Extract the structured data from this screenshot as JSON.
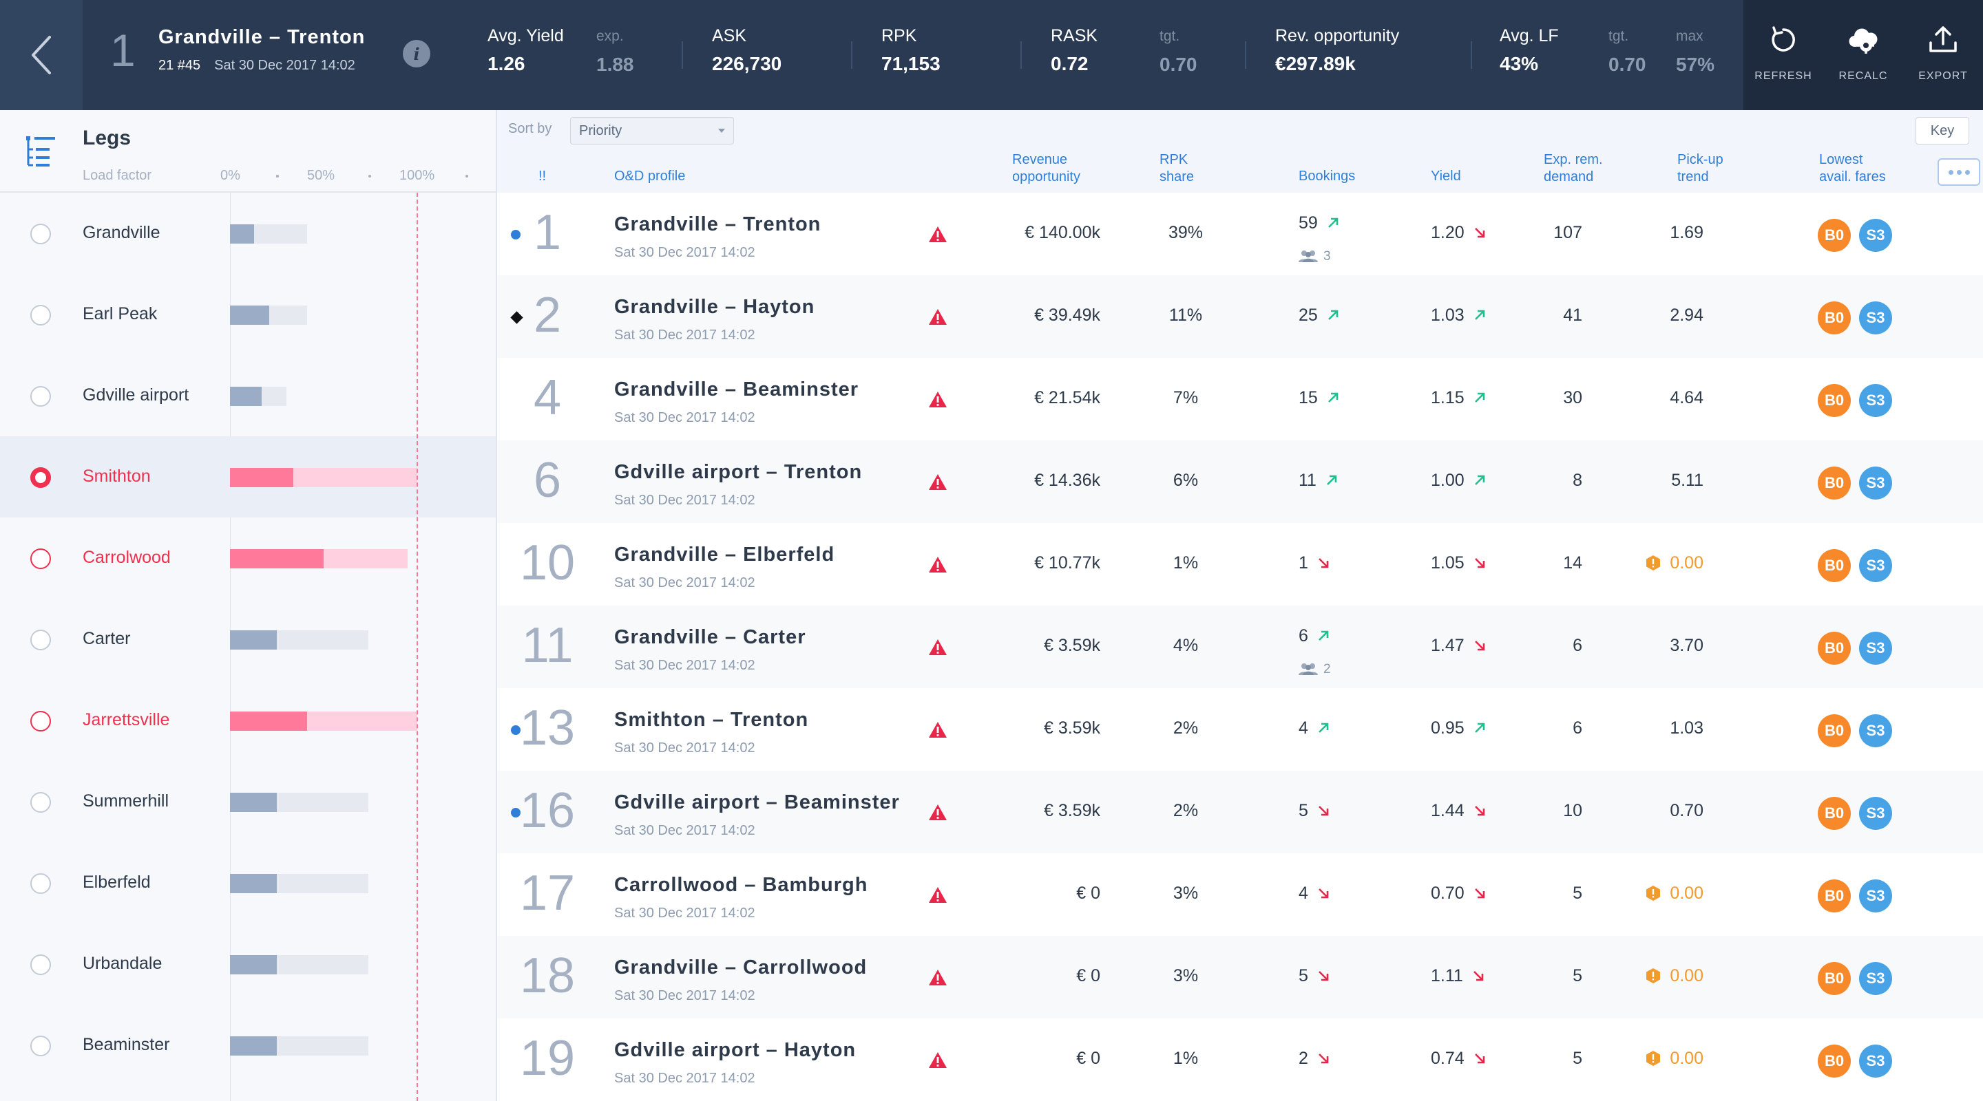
{
  "header": {
    "flight_index": "1",
    "route": "Grandville – Trenton",
    "flight_id": "21 #45",
    "datetime": "Sat 30 Dec 2017 14:02",
    "kpis": [
      {
        "label": "Avg. Yield",
        "value": "1.26"
      },
      {
        "label": "exp.",
        "value": "1.88"
      },
      {
        "label": "ASK",
        "value": "226,730"
      },
      {
        "label": "RPK",
        "value": "71,153"
      },
      {
        "label": "RASK",
        "value": "0.72"
      },
      {
        "label": "tgt.",
        "value": "0.70"
      },
      {
        "label": "Rev. opportunity",
        "value": "€297.89k"
      },
      {
        "label": "Avg. LF",
        "value": "43%"
      },
      {
        "label": "tgt.",
        "value": "0.70"
      },
      {
        "label": "max",
        "value": "57%"
      }
    ],
    "actions": [
      {
        "label": "REFRESH",
        "icon": "refresh-icon"
      },
      {
        "label": "RECALC",
        "icon": "cloud-gear-icon"
      },
      {
        "label": "EXPORT",
        "icon": "upload-icon"
      }
    ]
  },
  "sidebar": {
    "title": "Legs",
    "load_factor_label": "Load factor",
    "ticks": [
      "0%",
      "50%",
      "100%"
    ],
    "legs": [
      {
        "name": "Grandville",
        "load": 0.13,
        "capacity": 0.41,
        "state": "normal"
      },
      {
        "name": "Earl Peak",
        "load": 0.21,
        "capacity": 0.41,
        "state": "normal"
      },
      {
        "name": "Gdville airport",
        "load": 0.17,
        "capacity": 0.3,
        "state": "normal"
      },
      {
        "name": "Smithton",
        "load": 0.34,
        "capacity": 1.0,
        "state": "selected"
      },
      {
        "name": "Carrolwood",
        "load": 0.5,
        "capacity": 0.95,
        "state": "alert"
      },
      {
        "name": "Carter",
        "load": 0.25,
        "capacity": 0.74,
        "state": "normal"
      },
      {
        "name": "Jarrettsville",
        "load": 0.41,
        "capacity": 1.0,
        "state": "alert"
      },
      {
        "name": "Summerhill",
        "load": 0.25,
        "capacity": 0.74,
        "state": "normal"
      },
      {
        "name": "Elberfeld",
        "load": 0.25,
        "capacity": 0.74,
        "state": "normal"
      },
      {
        "name": "Urbandale",
        "load": 0.25,
        "capacity": 0.74,
        "state": "normal"
      },
      {
        "name": "Beaminster",
        "load": 0.25,
        "capacity": 0.74,
        "state": "normal"
      }
    ]
  },
  "table": {
    "sort_label": "Sort by",
    "sort_value": "Priority",
    "key_label": "Key",
    "columns": {
      "flag": "!!",
      "od": "O&D profile",
      "rev": "Revenue\nopportunity",
      "rpk": "RPK\nshare",
      "bookings": "Bookings",
      "yield": "Yield",
      "exp": "Exp. rem.\ndemand",
      "pickup": "Pick-up\ntrend",
      "fares": "Lowest\navail. fares"
    },
    "rows": [
      {
        "marker": "dot",
        "num": "1",
        "od": "Grandville – Trenton",
        "date": "Sat 30 Dec 2017 14:02",
        "rev": "€ 140.00k",
        "rpk": "39%",
        "bookings": "59",
        "bk_trend": "up",
        "pax": "3",
        "yield": "1.20",
        "y_trend": "down",
        "exp": "107",
        "pickup": "1.69",
        "pickup_warn": false,
        "fare1": "B0",
        "fare2": "S3"
      },
      {
        "marker": "diamond",
        "num": "2",
        "od": "Grandville – Hayton",
        "date": "Sat 30 Dec 2017 14:02",
        "rev": "€ 39.49k",
        "rpk": "11%",
        "bookings": "25",
        "bk_trend": "up",
        "pax": "",
        "yield": "1.03",
        "y_trend": "up",
        "exp": "41",
        "pickup": "2.94",
        "pickup_warn": false,
        "fare1": "B0",
        "fare2": "S3"
      },
      {
        "marker": "",
        "num": "4",
        "od": "Grandville – Beaminster",
        "date": "Sat 30 Dec 2017 14:02",
        "rev": "€ 21.54k",
        "rpk": "7%",
        "bookings": "15",
        "bk_trend": "up",
        "pax": "",
        "yield": "1.15",
        "y_trend": "up",
        "exp": "30",
        "pickup": "4.64",
        "pickup_warn": false,
        "fare1": "B0",
        "fare2": "S3"
      },
      {
        "marker": "",
        "num": "6",
        "od": "Gdville airport – Trenton",
        "date": "Sat 30 Dec 2017 14:02",
        "rev": "€ 14.36k",
        "rpk": "6%",
        "bookings": "11",
        "bk_trend": "up",
        "pax": "",
        "yield": "1.00",
        "y_trend": "up",
        "exp": "8",
        "pickup": "5.11",
        "pickup_warn": false,
        "fare1": "B0",
        "fare2": "S3"
      },
      {
        "marker": "",
        "num": "10",
        "od": "Grandville – Elberfeld",
        "date": "Sat 30 Dec 2017 14:02",
        "rev": "€ 10.77k",
        "rpk": "1%",
        "bookings": "1",
        "bk_trend": "down",
        "pax": "",
        "yield": "1.05",
        "y_trend": "down",
        "exp": "14",
        "pickup": "0.00",
        "pickup_warn": true,
        "fare1": "B0",
        "fare2": "S3"
      },
      {
        "marker": "",
        "num": "11",
        "od": "Grandville – Carter",
        "date": "Sat 30 Dec 2017 14:02",
        "rev": "€ 3.59k",
        "rpk": "4%",
        "bookings": "6",
        "bk_trend": "up",
        "pax": "2",
        "yield": "1.47",
        "y_trend": "down",
        "exp": "6",
        "pickup": "3.70",
        "pickup_warn": false,
        "fare1": "B0",
        "fare2": "S3"
      },
      {
        "marker": "dot",
        "num": "13",
        "od": "Smithton – Trenton",
        "date": "Sat 30 Dec 2017 14:02",
        "rev": "€ 3.59k",
        "rpk": "2%",
        "bookings": "4",
        "bk_trend": "up",
        "pax": "",
        "yield": "0.95",
        "y_trend": "up",
        "exp": "6",
        "pickup": "1.03",
        "pickup_warn": false,
        "fare1": "B0",
        "fare2": "S3"
      },
      {
        "marker": "dot",
        "num": "16",
        "od": "Gdville airport – Beaminster",
        "date": "Sat 30 Dec 2017 14:02",
        "rev": "€ 3.59k",
        "rpk": "2%",
        "bookings": "5",
        "bk_trend": "down",
        "pax": "",
        "yield": "1.44",
        "y_trend": "down",
        "exp": "10",
        "pickup": "0.70",
        "pickup_warn": false,
        "fare1": "B0",
        "fare2": "S3"
      },
      {
        "marker": "",
        "num": "17",
        "od": "Carrollwood – Bamburgh",
        "date": "Sat 30 Dec 2017 14:02",
        "rev": "€ 0",
        "rpk": "3%",
        "bookings": "4",
        "bk_trend": "down",
        "pax": "",
        "yield": "0.70",
        "y_trend": "down",
        "exp": "5",
        "pickup": "0.00",
        "pickup_warn": true,
        "fare1": "B0",
        "fare2": "S3"
      },
      {
        "marker": "",
        "num": "18",
        "od": "Grandville – Carrollwood",
        "date": "Sat 30 Dec 2017 14:02",
        "rev": "€ 0",
        "rpk": "3%",
        "bookings": "5",
        "bk_trend": "down",
        "pax": "",
        "yield": "1.11",
        "y_trend": "down",
        "exp": "5",
        "pickup": "0.00",
        "pickup_warn": true,
        "fare1": "B0",
        "fare2": "S3"
      },
      {
        "marker": "",
        "num": "19",
        "od": "Gdville airport – Hayton",
        "date": "Sat 30 Dec 2017 14:02",
        "rev": "€ 0",
        "rpk": "1%",
        "bookings": "2",
        "bk_trend": "down",
        "pax": "",
        "yield": "0.74",
        "y_trend": "down",
        "exp": "5",
        "pickup": "0.00",
        "pickup_warn": true,
        "fare1": "B0",
        "fare2": "S3"
      }
    ]
  },
  "colors": {
    "header_bg": "#2a3a52",
    "accent": "#2f7ed8",
    "alert": "#f0304e",
    "trend_up": "#1fbf8f",
    "trend_down": "#e8264a",
    "fare_b": "#f7892a",
    "fare_s": "#48a3e6"
  }
}
